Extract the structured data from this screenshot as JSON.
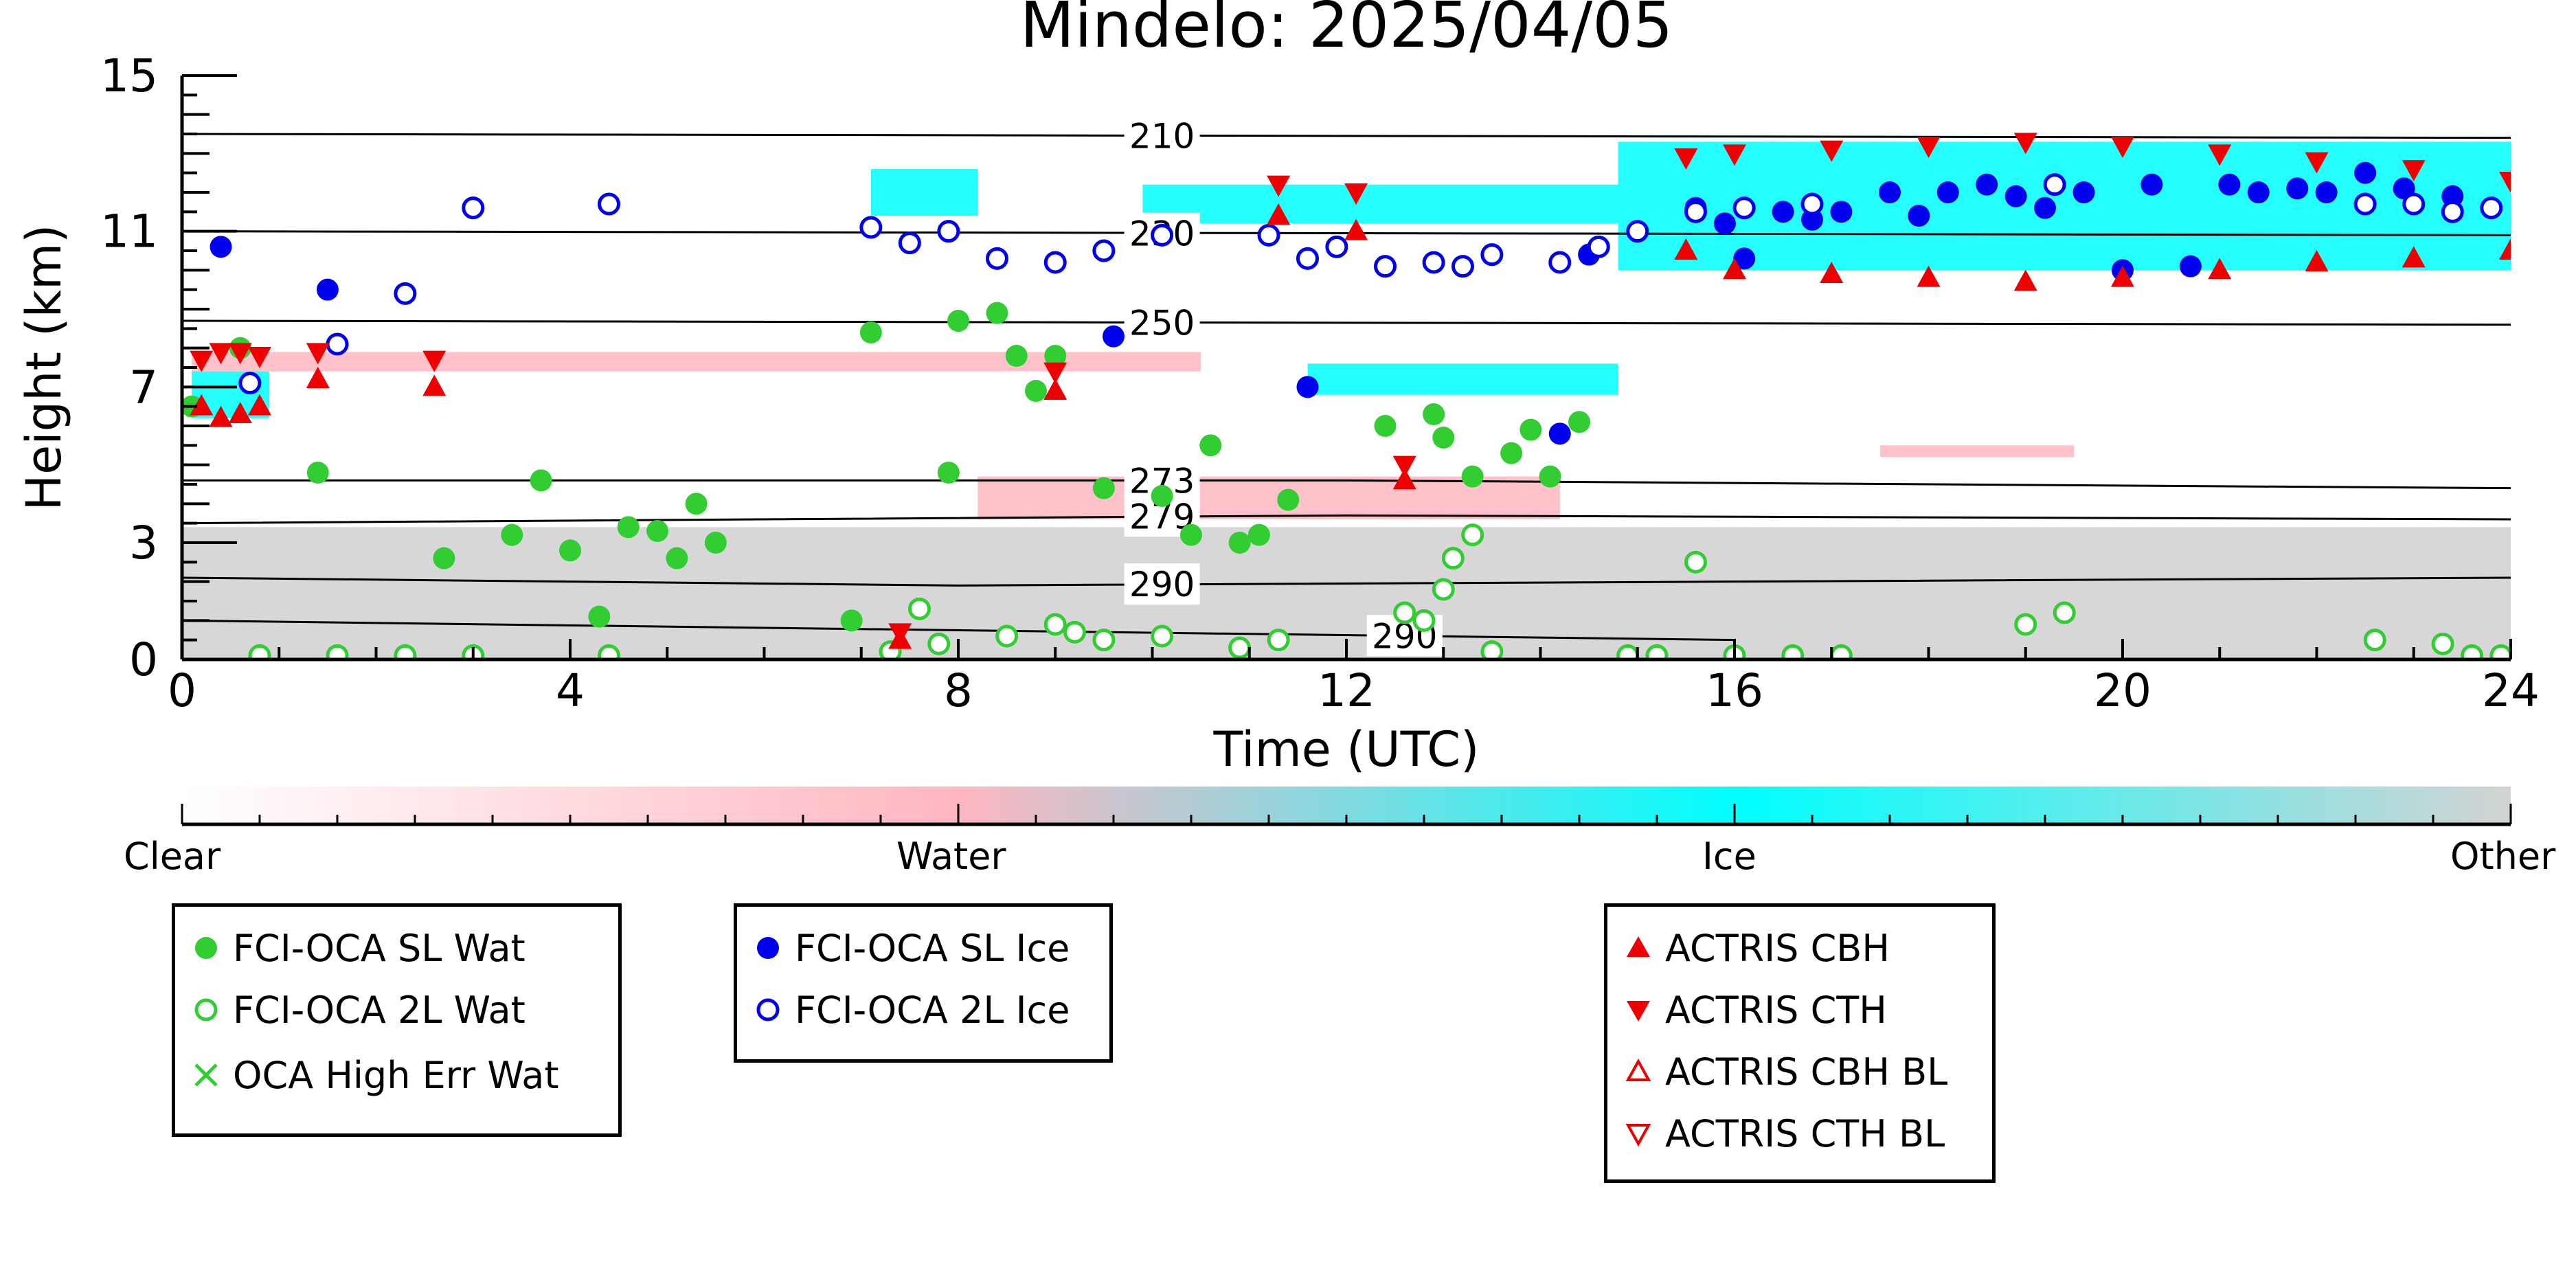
{
  "chart_data": {
    "type": "scatter",
    "title": "Mindelo: 2025/04/05",
    "xlabel": "Time (UTC)",
    "ylabel": "Height (km)",
    "xlim": [
      0,
      24
    ],
    "ylim": [
      0,
      15
    ],
    "xticks": [
      0,
      4,
      8,
      12,
      16,
      20,
      24
    ],
    "yticks": [
      0,
      3,
      7,
      11,
      15
    ],
    "grid": false,
    "colorbar": {
      "labels": [
        "Clear",
        "Water",
        "Ice",
        "Other"
      ],
      "colors": [
        "#ffffff",
        "#ffb6c1",
        "#00ffff",
        "#d3d3d3"
      ]
    },
    "isotherms": [
      {
        "label": "210",
        "x": [
          0,
          24
        ],
        "y": [
          13.5,
          13.4
        ]
      },
      {
        "label": "230",
        "x": [
          0,
          24
        ],
        "y": [
          11.0,
          10.9
        ]
      },
      {
        "label": "250",
        "x": [
          0,
          24
        ],
        "y": [
          8.7,
          8.6
        ]
      },
      {
        "label": "273",
        "x": [
          0,
          12,
          24
        ],
        "y": [
          4.6,
          4.6,
          4.4
        ]
      },
      {
        "label": "279",
        "x": [
          0,
          12,
          24
        ],
        "y": [
          3.5,
          3.7,
          3.6
        ]
      },
      {
        "label": "290",
        "x": [
          0,
          8,
          16,
          24
        ],
        "y": [
          2.1,
          1.9,
          2.0,
          2.1
        ]
      },
      {
        "label": "290",
        "x": [
          0,
          16
        ],
        "y": [
          1.0,
          0.5
        ]
      }
    ],
    "target_regions": [
      {
        "class": "Other",
        "x0": 0,
        "x1": 24,
        "y0": 0,
        "y1": 3.4
      },
      {
        "class": "Water",
        "x0": 0.1,
        "x1": 10.5,
        "y0": 7.4,
        "y1": 7.9
      },
      {
        "class": "Ice",
        "x0": 0.1,
        "x1": 0.9,
        "y0": 6.2,
        "y1": 7.4
      },
      {
        "class": "Ice",
        "x0": 7.1,
        "x1": 8.2,
        "y0": 11.4,
        "y1": 12.6
      },
      {
        "class": "Ice",
        "x0": 9.9,
        "x1": 14.8,
        "y0": 11.2,
        "y1": 12.2
      },
      {
        "class": "Ice",
        "x0": 11.6,
        "x1": 14.8,
        "y0": 6.8,
        "y1": 7.6
      },
      {
        "class": "Ice",
        "x0": 14.8,
        "x1": 24,
        "y0": 10.0,
        "y1": 13.3
      },
      {
        "class": "Water",
        "x0": 8.2,
        "x1": 14.2,
        "y0": 3.6,
        "y1": 4.7
      },
      {
        "class": "Water",
        "x0": 17.5,
        "x1": 19.5,
        "y0": 5.2,
        "y1": 5.5
      }
    ],
    "series": [
      {
        "name": "FCI-OCA SL Wat",
        "color": "#32cd32",
        "marker": "circle-filled",
        "x": [
          0.1,
          0.6,
          1.4,
          2.7,
          3.4,
          3.7,
          4.0,
          4.3,
          4.6,
          4.9,
          5.1,
          5.3,
          5.5,
          6.9,
          7.1,
          7.9,
          8.0,
          8.4,
          8.6,
          8.8,
          9.0,
          9.5,
          10.1,
          10.4,
          10.6,
          10.9,
          11.1,
          11.4,
          12.4,
          12.9,
          13.0,
          13.3,
          13.7,
          13.9,
          14.1,
          14.4
        ],
        "y": [
          6.5,
          8.0,
          4.8,
          2.6,
          3.2,
          4.6,
          2.8,
          1.1,
          3.4,
          3.3,
          2.6,
          4.0,
          3.0,
          1.0,
          8.4,
          4.8,
          8.7,
          8.9,
          7.8,
          6.9,
          7.8,
          4.4,
          4.2,
          3.2,
          5.5,
          3.0,
          3.2,
          4.1,
          6.0,
          6.3,
          5.7,
          4.7,
          5.3,
          5.9,
          4.7,
          6.1
        ]
      },
      {
        "name": "FCI-OCA 2L Wat",
        "color": "#32cd32",
        "marker": "circle-open",
        "x": [
          0.8,
          1.6,
          2.3,
          3.0,
          4.4,
          7.3,
          7.6,
          7.8,
          8.5,
          9.0,
          9.2,
          9.5,
          10.1,
          10.9,
          11.3,
          12.6,
          12.8,
          13.0,
          13.1,
          13.3,
          13.5,
          14.9,
          15.2,
          15.6,
          16.0,
          16.6,
          17.1,
          19.0,
          19.4,
          22.6,
          23.3,
          23.6,
          23.9
        ],
        "y": [
          0.1,
          0.1,
          0.1,
          0.1,
          0.1,
          0.2,
          1.3,
          0.4,
          0.6,
          0.9,
          0.7,
          0.5,
          0.6,
          0.3,
          0.5,
          1.2,
          1.0,
          1.8,
          2.6,
          3.2,
          0.2,
          0.1,
          0.1,
          2.5,
          0.1,
          0.1,
          0.1,
          0.9,
          1.2,
          0.5,
          0.4,
          0.1,
          0.1
        ]
      },
      {
        "name": "OCA High Err Wat",
        "color": "#32cd32",
        "marker": "x",
        "x": [],
        "y": []
      },
      {
        "name": "FCI-OCA SL Ice",
        "color": "#0000ee",
        "marker": "circle-filled",
        "x": [
          0.4,
          1.5,
          9.6,
          11.6,
          14.2,
          14.5,
          15.6,
          15.9,
          16.1,
          16.5,
          16.8,
          17.1,
          17.6,
          17.9,
          18.2,
          18.6,
          18.9,
          19.2,
          19.6,
          20.0,
          20.3,
          20.7,
          21.1,
          21.4,
          21.8,
          22.1,
          22.5,
          22.9,
          23.4
        ],
        "y": [
          10.6,
          9.5,
          8.3,
          7.0,
          5.8,
          10.4,
          11.6,
          11.2,
          10.3,
          11.5,
          11.3,
          11.5,
          12.0,
          11.4,
          12.0,
          12.2,
          11.9,
          11.6,
          12.0,
          10.0,
          12.2,
          10.1,
          12.2,
          12.0,
          12.1,
          12.0,
          12.5,
          12.1,
          11.9
        ]
      },
      {
        "name": "FCI-OCA 2L Ice",
        "color": "#0000ee",
        "marker": "circle-open",
        "x": [
          0.7,
          1.6,
          2.3,
          3.0,
          4.4,
          7.1,
          7.5,
          7.9,
          8.4,
          9.0,
          9.5,
          10.1,
          11.2,
          11.6,
          11.9,
          12.4,
          12.9,
          13.2,
          13.5,
          14.2,
          14.6,
          15.0,
          15.6,
          16.1,
          16.8,
          19.3,
          22.5,
          23.0,
          23.4,
          23.8
        ],
        "y": [
          7.1,
          8.1,
          9.4,
          11.6,
          11.7,
          11.1,
          10.7,
          11.0,
          10.3,
          10.2,
          10.5,
          10.9,
          10.9,
          10.3,
          10.6,
          10.1,
          10.2,
          10.1,
          10.4,
          10.2,
          10.6,
          11.0,
          11.5,
          11.6,
          11.7,
          12.2,
          11.7,
          11.7,
          11.5,
          11.6
        ]
      },
      {
        "name": "ACTRIS CBH",
        "color": "#ee0000",
        "marker": "triangle-up-filled",
        "x": [
          0.2,
          0.4,
          0.6,
          0.8,
          1.4,
          2.6,
          7.4,
          9.0,
          11.3,
          12.1,
          12.6,
          15.5,
          16.0,
          17.0,
          18.0,
          19.0,
          20.0,
          21.0,
          22.0,
          23.0,
          24.0
        ],
        "y": [
          6.5,
          6.2,
          6.3,
          6.5,
          7.2,
          7.0,
          0.5,
          6.9,
          11.4,
          11.0,
          4.6,
          10.5,
          10.0,
          9.9,
          9.8,
          9.7,
          9.8,
          10.0,
          10.2,
          10.3,
          10.5
        ]
      },
      {
        "name": "ACTRIS CTH",
        "color": "#ee0000",
        "marker": "triangle-down-filled",
        "x": [
          0.2,
          0.4,
          0.6,
          0.8,
          1.4,
          2.6,
          7.4,
          9.0,
          11.3,
          12.1,
          12.6,
          15.5,
          16.0,
          17.0,
          18.0,
          19.0,
          20.0,
          21.0,
          22.0,
          23.0,
          24.0
        ],
        "y": [
          7.7,
          7.9,
          7.9,
          7.8,
          7.9,
          7.7,
          0.7,
          7.4,
          12.2,
          12.0,
          5.0,
          12.9,
          13.0,
          13.1,
          13.2,
          13.3,
          13.2,
          13.0,
          12.8,
          12.6,
          12.3
        ]
      },
      {
        "name": "ACTRIS CBH BL",
        "color": "#ee0000",
        "marker": "triangle-up-open",
        "x": [],
        "y": []
      },
      {
        "name": "ACTRIS CTH BL",
        "color": "#ee0000",
        "marker": "triangle-down-open",
        "x": [],
        "y": []
      }
    ]
  }
}
